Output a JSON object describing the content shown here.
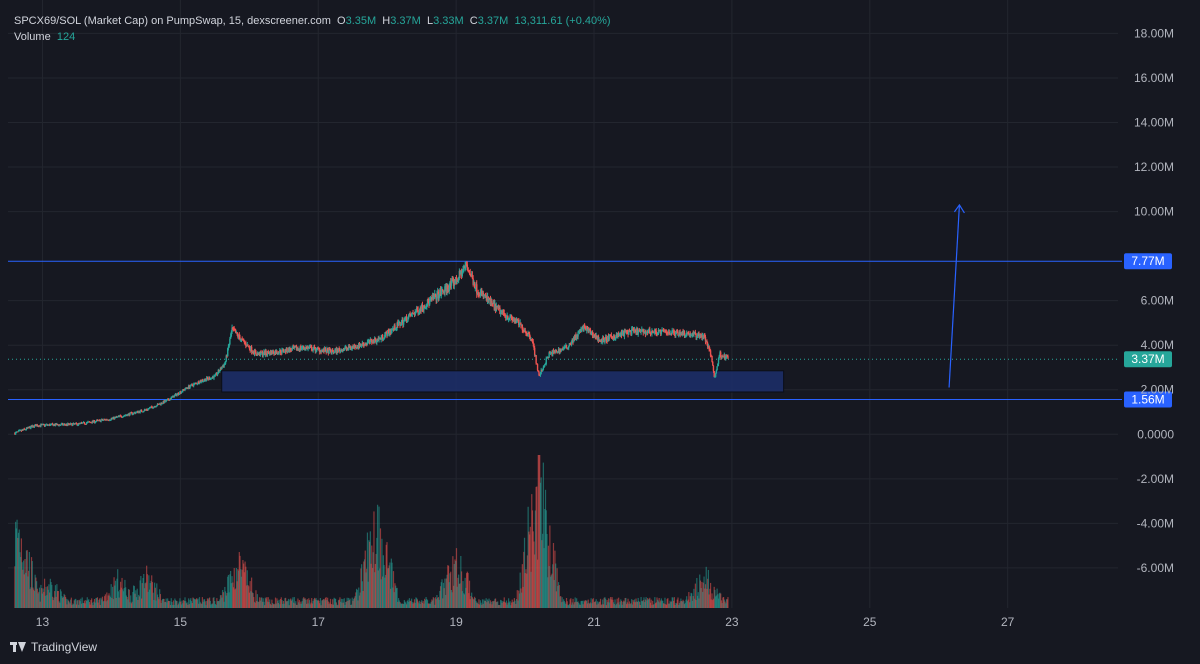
{
  "header": {
    "symbol": "SPCX69/SOL (Market Cap) on PumpSwap, 15, dexscreener.com",
    "open_label": "O",
    "open": "3.35M",
    "high_label": "H",
    "high": "3.37M",
    "low_label": "L",
    "low": "3.33M",
    "close_label": "C",
    "close": "3.37M",
    "change": "13,311.61 (+0.40%)",
    "volume_label": "Volume",
    "volume": "124"
  },
  "footer": {
    "brand": "TradingView"
  },
  "colors": {
    "background": "#161821",
    "up": "#26a69a",
    "down": "#ef5350",
    "accent": "#2962ff",
    "zone": "#1c2f6b"
  },
  "chart_data": {
    "type": "candlestick",
    "x_ticks": [
      "13",
      "15",
      "17",
      "19",
      "21",
      "23",
      "25",
      "27"
    ],
    "x_tick_values": [
      13,
      15,
      17,
      19,
      21,
      23,
      25,
      27
    ],
    "xlim": [
      12.5,
      28.6
    ],
    "y_ticks": [
      "18.00M",
      "16.00M",
      "14.00M",
      "12.00M",
      "10.00M",
      "6.00M",
      "4.00M",
      "2.00M",
      "0.0000",
      "-2.00M",
      "-4.00M",
      "-6.00M"
    ],
    "y_tick_values": [
      18,
      16,
      14,
      12,
      10,
      6,
      4,
      2,
      0,
      -2,
      -4,
      -6
    ],
    "ylim": [
      -7.8,
      19.5
    ],
    "price_path": [
      [
        12.6,
        0.05
      ],
      [
        12.9,
        0.4
      ],
      [
        13.5,
        0.45
      ],
      [
        14.0,
        0.7
      ],
      [
        14.5,
        1.1
      ],
      [
        14.8,
        1.5
      ],
      [
        15.1,
        2.1
      ],
      [
        15.3,
        2.4
      ],
      [
        15.5,
        2.6
      ],
      [
        15.65,
        3.2
      ],
      [
        15.75,
        4.7
      ],
      [
        15.9,
        4.2
      ],
      [
        16.1,
        3.6
      ],
      [
        16.4,
        3.7
      ],
      [
        16.8,
        3.9
      ],
      [
        17.2,
        3.7
      ],
      [
        17.6,
        4.0
      ],
      [
        17.9,
        4.3
      ],
      [
        18.2,
        5.0
      ],
      [
        18.5,
        5.7
      ],
      [
        18.8,
        6.4
      ],
      [
        19.0,
        6.9
      ],
      [
        19.15,
        7.6
      ],
      [
        19.3,
        6.5
      ],
      [
        19.6,
        5.6
      ],
      [
        19.9,
        5.0
      ],
      [
        20.1,
        4.3
      ],
      [
        20.2,
        2.6
      ],
      [
        20.35,
        3.6
      ],
      [
        20.6,
        3.9
      ],
      [
        20.85,
        4.8
      ],
      [
        21.1,
        4.2
      ],
      [
        21.5,
        4.6
      ],
      [
        21.9,
        4.6
      ],
      [
        22.3,
        4.55
      ],
      [
        22.6,
        4.4
      ],
      [
        22.7,
        3.5
      ],
      [
        22.75,
        2.5
      ],
      [
        22.82,
        3.6
      ],
      [
        22.95,
        3.4
      ]
    ],
    "volume_peaks": [
      [
        12.65,
        0.65
      ],
      [
        13.1,
        0.2
      ],
      [
        14.1,
        0.22
      ],
      [
        14.5,
        0.25
      ],
      [
        15.85,
        0.35
      ],
      [
        17.85,
        0.7
      ],
      [
        19.0,
        0.38
      ],
      [
        20.2,
        1.0
      ],
      [
        22.6,
        0.25
      ]
    ],
    "horizontal_levels": [
      {
        "label": "7.77M",
        "value": 7.77
      },
      {
        "label": "1.56M",
        "value": 1.56
      }
    ],
    "last_price": {
      "label": "3.37M",
      "value": 3.37
    },
    "zone": {
      "x0": 15.6,
      "x1": 23.75,
      "y0": 1.9,
      "y1": 2.85
    },
    "arrow": {
      "x0": 26.15,
      "y0": 2.1,
      "x1": 26.3,
      "y1": 10.3
    }
  }
}
